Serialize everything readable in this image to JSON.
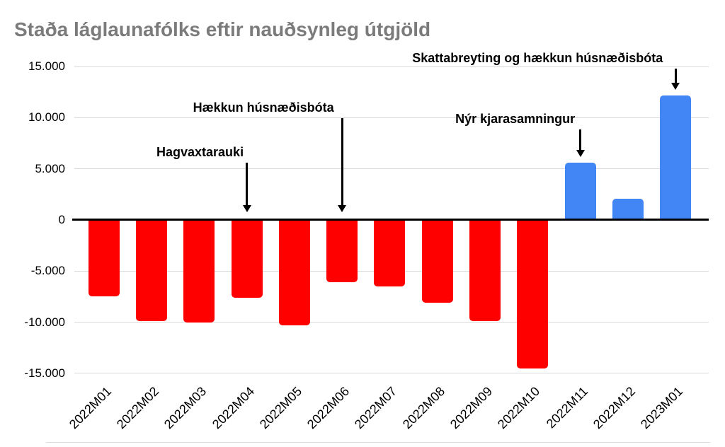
{
  "chart_data": {
    "type": "bar",
    "title": "Staða láglaunafólks eftir nauðsynleg útgjöld",
    "title_color": "#7b7b7b",
    "categories": [
      "2022M01",
      "2022M02",
      "2022M03",
      "2022M04",
      "2022M05",
      "2022M06",
      "2022M07",
      "2022M08",
      "2022M09",
      "2022M10",
      "2022M11",
      "2022M12",
      "2023M01"
    ],
    "values": [
      -7500,
      -9900,
      -10000,
      -7600,
      -10300,
      -6100,
      -6500,
      -8100,
      -9900,
      -14500,
      5600,
      2100,
      12200
    ],
    "xlabel": "",
    "ylabel": "",
    "ylim": [
      -15000,
      15000
    ],
    "ytick_step": 5000,
    "ytick_labels": [
      "15.000",
      "10.000",
      "5.000",
      "0",
      "-5.000",
      "-10.000",
      "-15.000"
    ],
    "grid": true,
    "legend": "none",
    "bar_colors": {
      "positive": "#4285f4",
      "negative": "#ff0000"
    },
    "annotations": [
      {
        "label": "Hagvaxtarauki",
        "category": "2022M04",
        "text_dx": -66,
        "text_top": 204
      },
      {
        "label": "Hækkun húsnæðisbóta",
        "category": "2022M06",
        "text_dx": -111,
        "text_top": 141
      },
      {
        "label": "Nýr kjarasamningur",
        "category": "2022M11",
        "text_dx": -92,
        "text_top": 157
      },
      {
        "label": "Skattabreyting og hækkun húsnæðisbóta",
        "category": "2023M01",
        "text_dx": -195,
        "text_top": 71
      }
    ]
  }
}
